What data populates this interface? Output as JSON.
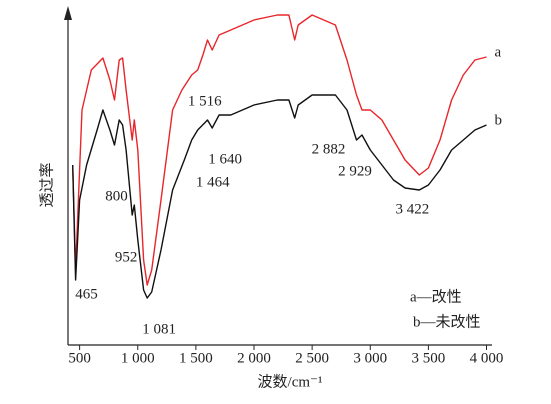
{
  "chart_data": {
    "type": "line",
    "x_label": "波数/cm⁻¹",
    "y_label": "透过率",
    "xlim": [
      400,
      4030
    ],
    "ylim": [
      0,
      335
    ],
    "xticks": [
      500,
      {
        "value": 1000,
        "label": "1 000"
      },
      {
        "value": 1500,
        "label": "1 500"
      },
      {
        "value": 2000,
        "label": "2 000"
      },
      {
        "value": 2500,
        "label": "2 500"
      },
      {
        "value": 3000,
        "label": "3 000"
      },
      {
        "value": 3500,
        "label": "3 500"
      },
      {
        "value": 4000,
        "label": "4 000"
      }
    ],
    "series": [
      {
        "name": "a",
        "color": "#e8262b",
        "x": [
          440,
          465,
          520,
          600,
          700,
          760,
          800,
          840,
          870,
          900,
          952,
          970,
          1000,
          1050,
          1081,
          1120,
          1200,
          1300,
          1380,
          1464,
          1516,
          1560,
          1600,
          1640,
          1700,
          1800,
          2000,
          2200,
          2300,
          2350,
          2380,
          2500,
          2700,
          2800,
          2882,
          2929,
          3000,
          3100,
          3200,
          3300,
          3422,
          3500,
          3600,
          3700,
          3800,
          3900,
          4000
        ],
        "values": [
          180,
          75,
          235,
          275,
          287,
          265,
          245,
          285,
          287,
          255,
          205,
          225,
          195,
          85,
          60,
          75,
          145,
          235,
          255,
          270,
          275,
          290,
          305,
          295,
          310,
          315,
          325,
          330,
          330,
          305,
          320,
          330,
          320,
          285,
          250,
          235,
          235,
          225,
          205,
          185,
          170,
          177,
          205,
          245,
          270,
          285,
          288
        ]
      },
      {
        "name": "b",
        "color": "#111111",
        "x": [
          440,
          465,
          500,
          560,
          650,
          700,
          760,
          800,
          840,
          870,
          900,
          952,
          970,
          1000,
          1050,
          1081,
          1120,
          1200,
          1300,
          1400,
          1464,
          1516,
          1600,
          1640,
          1700,
          1800,
          2000,
          2200,
          2300,
          2350,
          2380,
          2500,
          2700,
          2800,
          2882,
          2929,
          3000,
          3100,
          3200,
          3300,
          3422,
          3500,
          3600,
          3700,
          3800,
          3900,
          4000
        ],
        "values": [
          180,
          65,
          145,
          180,
          215,
          235,
          215,
          200,
          225,
          220,
          195,
          130,
          140,
          105,
          55,
          47,
          53,
          95,
          155,
          185,
          205,
          215,
          225,
          217,
          230,
          230,
          240,
          245,
          245,
          227,
          240,
          250,
          250,
          235,
          205,
          210,
          195,
          180,
          165,
          157,
          155,
          160,
          175,
          195,
          205,
          215,
          220
        ]
      }
    ],
    "annotations": [
      {
        "text": "465",
        "x": 465
      },
      {
        "text": "800",
        "x": 800
      },
      {
        "text": "952",
        "x": 952
      },
      {
        "text": "1 081",
        "x": 1081
      },
      {
        "text": "1 464",
        "x": 1464
      },
      {
        "text": "1 516",
        "x": 1516
      },
      {
        "text": "1 640",
        "x": 1640
      },
      {
        "text": "2 882",
        "x": 2882
      },
      {
        "text": "2 929",
        "x": 2929
      },
      {
        "text": "3 422",
        "x": 3422
      }
    ],
    "legend": [
      "a—改性",
      "b—未改性"
    ]
  }
}
